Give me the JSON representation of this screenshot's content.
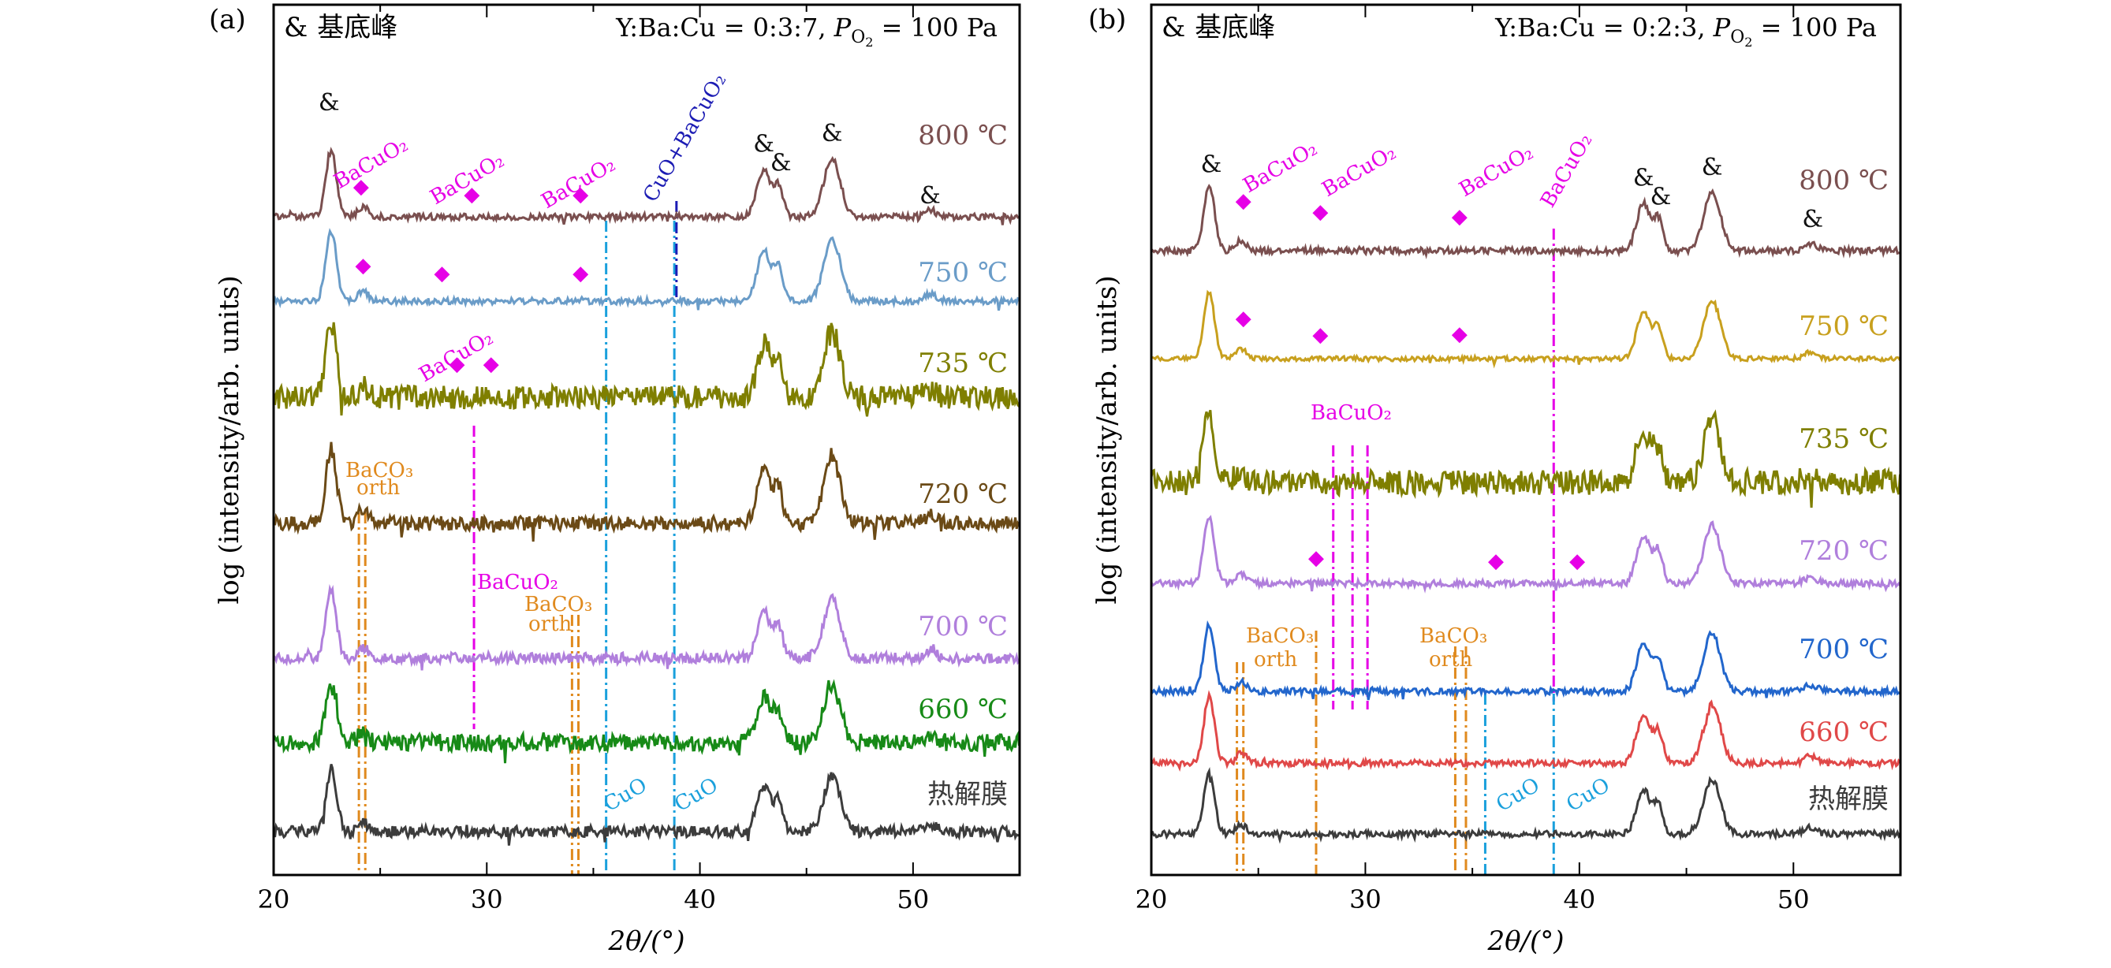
{
  "chart_data": [
    {
      "type": "line",
      "panel_label": "(a)",
      "legend_symbol": "&",
      "legend_text": "基底峰",
      "condition_pre": "Y:Ba:Cu = 0:3:7,  ",
      "condition_p": "P",
      "condition_sub": "O",
      "condition_subsub": "2",
      "condition_post": " = 100 Pa",
      "xlabel": "2θ/(°)",
      "ylabel": "log (intensity/arb. units)",
      "xlim": [
        20,
        55
      ],
      "xticks": [
        "20",
        "30",
        "40",
        "50"
      ],
      "y_scale": "log",
      "series": [
        {
          "name": "800 ℃",
          "color": "#7a4f4f"
        },
        {
          "name": "750 ℃",
          "color": "#6a9cc8"
        },
        {
          "name": "735 ℃",
          "color": "#7f7f00"
        },
        {
          "name": "720 ℃",
          "color": "#6b4a16"
        },
        {
          "name": "700 ℃",
          "color": "#b07fdc"
        },
        {
          "name": "660 ℃",
          "color": "#178a17"
        },
        {
          "name": "热解膜",
          "color": "#3c3c3c"
        }
      ],
      "peak_markers": [
        {
          "series": "800 ℃",
          "x": 22.6,
          "label": "&"
        },
        {
          "series": "800 ℃",
          "x": 43.0,
          "label": "&"
        },
        {
          "series": "800 ℃",
          "x": 43.8,
          "label": "&"
        },
        {
          "series": "800 ℃",
          "x": 46.2,
          "label": "&"
        },
        {
          "series": "800 ℃",
          "x": 50.8,
          "label": "&"
        },
        {
          "series": "800 ℃",
          "x": 24.1,
          "label": "◆"
        },
        {
          "series": "800 ℃",
          "x": 29.3,
          "label": "◆"
        },
        {
          "series": "800 ℃",
          "x": 34.4,
          "label": "◆"
        },
        {
          "series": "750 ℃",
          "x": 24.2,
          "label": "◆"
        },
        {
          "series": "750 ℃",
          "x": 27.9,
          "label": "◆"
        },
        {
          "series": "750 ℃",
          "x": 34.4,
          "label": "◆"
        },
        {
          "series": "735 ℃",
          "x": 28.6,
          "label": "◆"
        },
        {
          "series": "735 ℃",
          "x": 30.2,
          "label": "◆"
        }
      ],
      "annotations": [
        {
          "text": "BaCuO₂",
          "color": "#e600e6"
        },
        {
          "text": "BaCuO₂",
          "color": "#e600e6"
        },
        {
          "text": "BaCuO₂",
          "color": "#e600e6"
        },
        {
          "text": "CuO+BaCuO₂",
          "color": "#1c1cb4"
        },
        {
          "text": "BaCuO₂",
          "color": "#e600e6"
        },
        {
          "text": "BaCO₃",
          "color": "#e08a1e"
        },
        {
          "text": "orth",
          "color": "#e08a1e"
        },
        {
          "text": "BaCuO₂",
          "color": "#e600e6"
        },
        {
          "text": "BaCO₃",
          "color": "#e08a1e"
        },
        {
          "text": "orth",
          "color": "#e08a1e"
        },
        {
          "text": "CuO",
          "color": "#1aa0dc"
        },
        {
          "text": "CuO",
          "color": "#1aa0dc"
        }
      ],
      "reference_lines": [
        {
          "x": 24.0,
          "color": "#e08a1e"
        },
        {
          "x": 24.3,
          "color": "#e08a1e"
        },
        {
          "x": 34.0,
          "color": "#e08a1e"
        },
        {
          "x": 34.3,
          "color": "#e08a1e"
        },
        {
          "x": 29.4,
          "color": "#e600e6"
        },
        {
          "x": 35.6,
          "color": "#1aa0dc"
        },
        {
          "x": 38.8,
          "color": "#1aa0dc"
        },
        {
          "x": 38.9,
          "color": "#1c1cb4"
        }
      ]
    },
    {
      "type": "line",
      "panel_label": "(b)",
      "legend_symbol": "&",
      "legend_text": "基底峰",
      "condition_pre": "Y:Ba:Cu = 0:2:3,  ",
      "condition_p": "P",
      "condition_sub": "O",
      "condition_subsub": "2",
      "condition_post": " = 100 Pa",
      "xlabel": "2θ/(°)",
      "ylabel": "log (intensity/arb. units)",
      "xlim": [
        20,
        55
      ],
      "xticks": [
        "20",
        "30",
        "40",
        "50"
      ],
      "y_scale": "log",
      "series": [
        {
          "name": "800 ℃",
          "color": "#7a4f4f"
        },
        {
          "name": "750 ℃",
          "color": "#c8a01e"
        },
        {
          "name": "735 ℃",
          "color": "#7f7f00"
        },
        {
          "name": "720 ℃",
          "color": "#b07fdc"
        },
        {
          "name": "700 ℃",
          "color": "#2266cc"
        },
        {
          "name": "660 ℃",
          "color": "#e04848"
        },
        {
          "name": "热解膜",
          "color": "#3c3c3c"
        }
      ],
      "peak_markers": [
        {
          "series": "800 ℃",
          "x": 22.8,
          "label": "&"
        },
        {
          "series": "800 ℃",
          "x": 43.0,
          "label": "&"
        },
        {
          "series": "800 ℃",
          "x": 43.8,
          "label": "&"
        },
        {
          "series": "800 ℃",
          "x": 46.2,
          "label": "&"
        },
        {
          "series": "800 ℃",
          "x": 50.9,
          "label": "&"
        },
        {
          "series": "800 ℃",
          "x": 24.3,
          "label": "◆"
        },
        {
          "series": "800 ℃",
          "x": 27.9,
          "label": "◆"
        },
        {
          "series": "800 ℃",
          "x": 34.4,
          "label": "◆"
        },
        {
          "series": "750 ℃",
          "x": 24.3,
          "label": "◆"
        },
        {
          "series": "750 ℃",
          "x": 27.9,
          "label": "◆"
        },
        {
          "series": "750 ℃",
          "x": 34.4,
          "label": "◆"
        },
        {
          "series": "720 ℃",
          "x": 27.7,
          "label": "◆"
        },
        {
          "series": "720 ℃",
          "x": 36.1,
          "label": "◆"
        },
        {
          "series": "720 ℃",
          "x": 39.9,
          "label": "◆"
        }
      ],
      "annotations": [
        {
          "text": "BaCuO₂",
          "color": "#e600e6"
        },
        {
          "text": "BaCuO₂",
          "color": "#e600e6"
        },
        {
          "text": "BaCuO₂",
          "color": "#e600e6"
        },
        {
          "text": "BaCuO₂",
          "color": "#e600e6"
        },
        {
          "text": "BaCuO₂",
          "color": "#e600e6"
        },
        {
          "text": "BaCO₃",
          "color": "#e08a1e"
        },
        {
          "text": "orth",
          "color": "#e08a1e"
        },
        {
          "text": "BaCO₃",
          "color": "#e08a1e"
        },
        {
          "text": "orth",
          "color": "#e08a1e"
        },
        {
          "text": "CuO",
          "color": "#1aa0dc"
        },
        {
          "text": "CuO",
          "color": "#1aa0dc"
        }
      ],
      "reference_lines": [
        {
          "x": 24.0,
          "color": "#e08a1e"
        },
        {
          "x": 24.3,
          "color": "#e08a1e"
        },
        {
          "x": 27.7,
          "color": "#e08a1e"
        },
        {
          "x": 34.2,
          "color": "#e08a1e"
        },
        {
          "x": 34.7,
          "color": "#e08a1e"
        },
        {
          "x": 28.5,
          "color": "#e600e6"
        },
        {
          "x": 29.4,
          "color": "#e600e6"
        },
        {
          "x": 30.1,
          "color": "#e600e6"
        },
        {
          "x": 38.8,
          "color": "#e600e6"
        },
        {
          "x": 35.6,
          "color": "#1aa0dc"
        },
        {
          "x": 38.8,
          "color": "#1aa0dc"
        }
      ]
    }
  ]
}
